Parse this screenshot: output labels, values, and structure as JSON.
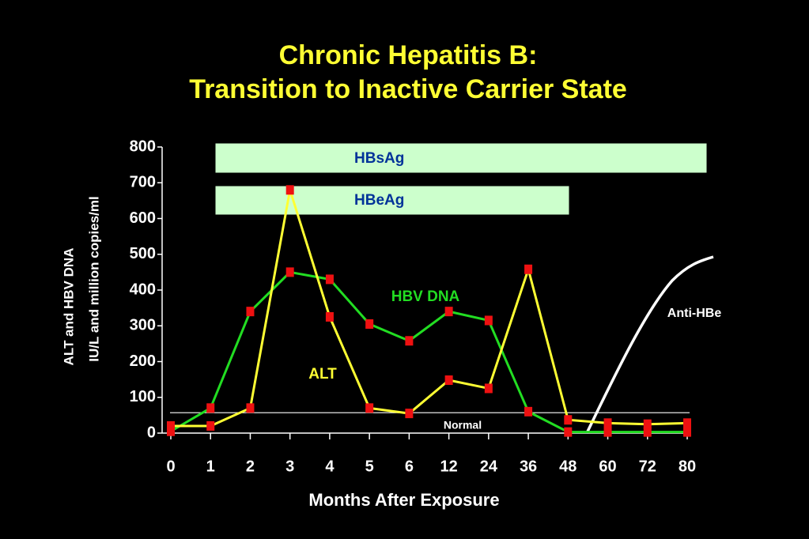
{
  "chart_data": {
    "type": "line",
    "title": "Chronic Hepatitis B:",
    "subtitle": "Transition to Inactive Carrier State",
    "y_label": [
      "ALT and HBV DNA",
      "IU/L and million copies/ml"
    ],
    "x_label": "Months After Exposure",
    "categories": [
      "0",
      "1",
      "2",
      "3",
      "4",
      "5",
      "6",
      "12",
      "24",
      "36",
      "48",
      "60",
      "72",
      "80"
    ],
    "series": [
      {
        "name": "HBV DNA",
        "color": "#22dd22",
        "values": [
          5,
          70,
          340,
          450,
          430,
          305,
          258,
          340,
          315,
          60,
          3,
          3,
          3,
          3
        ]
      },
      {
        "name": "ALT",
        "color": "#ffff33",
        "values": [
          20,
          20,
          70,
          680,
          325,
          70,
          55,
          148,
          125,
          458,
          37,
          28,
          25,
          28
        ]
      }
    ],
    "marker_color": "#ee1111",
    "ylim": [
      0,
      800
    ],
    "yticks": [
      0,
      100,
      200,
      300,
      400,
      500,
      600,
      700,
      800
    ],
    "reference_line": {
      "label": "Normal",
      "value": 57
    },
    "annotations": [
      "HBsAg",
      "HBeAg",
      "Anti-HBe"
    ]
  }
}
